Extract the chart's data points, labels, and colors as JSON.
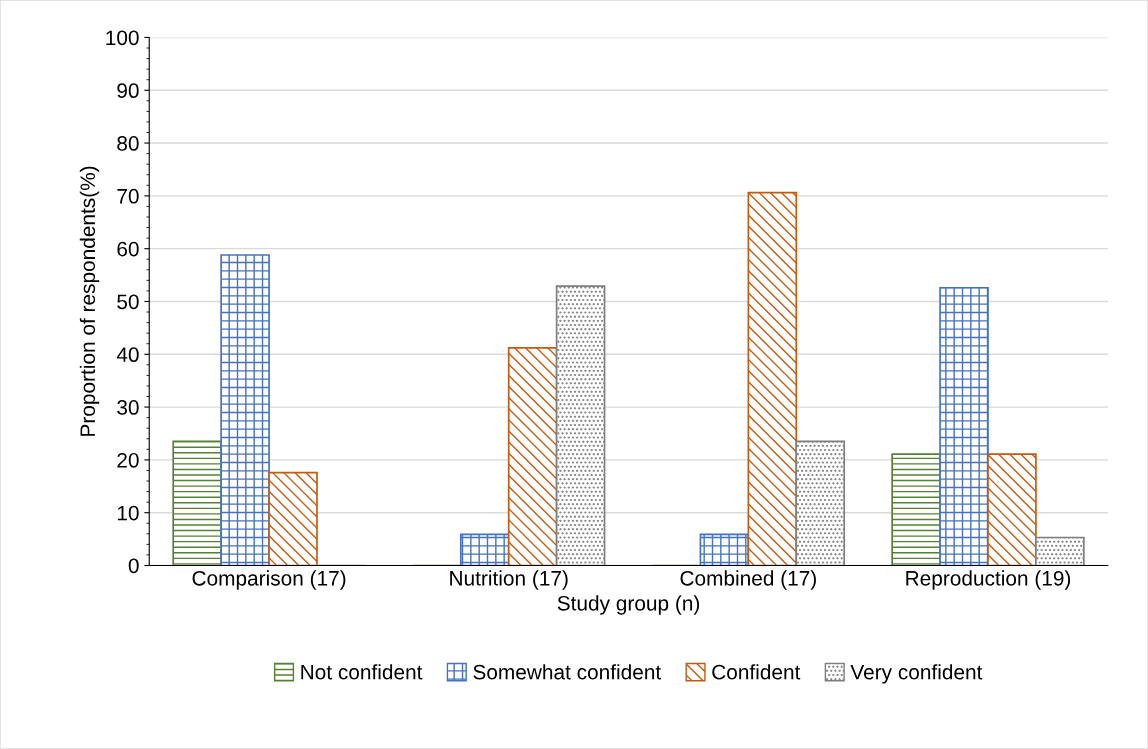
{
  "chart_data": {
    "type": "bar",
    "xlabel": "Study group (n)",
    "ylabel": "Proportion of respondents(%)",
    "categories": [
      "Comparison (17)",
      "Nutrition (17)",
      "Combined (17)",
      "Reproduction (19)"
    ],
    "series": [
      {
        "name": "Not confident",
        "color": "#548235",
        "values": [
          23.5,
          0,
          0,
          21.1
        ]
      },
      {
        "name": "Somewhat confident",
        "color": "#4472c4",
        "values": [
          58.8,
          5.9,
          5.9,
          52.6
        ]
      },
      {
        "name": "Confident",
        "color": "#c55a11",
        "values": [
          17.6,
          41.2,
          70.6,
          21.1
        ]
      },
      {
        "name": "Very confident",
        "color": "#7f7f7f",
        "values": [
          0,
          52.9,
          23.5,
          5.3
        ]
      }
    ],
    "ylim": [
      0,
      100
    ],
    "yticks": [
      0,
      10,
      20,
      30,
      40,
      50,
      60,
      70,
      80,
      90,
      100
    ],
    "grid": "y",
    "legend": "bottom"
  }
}
